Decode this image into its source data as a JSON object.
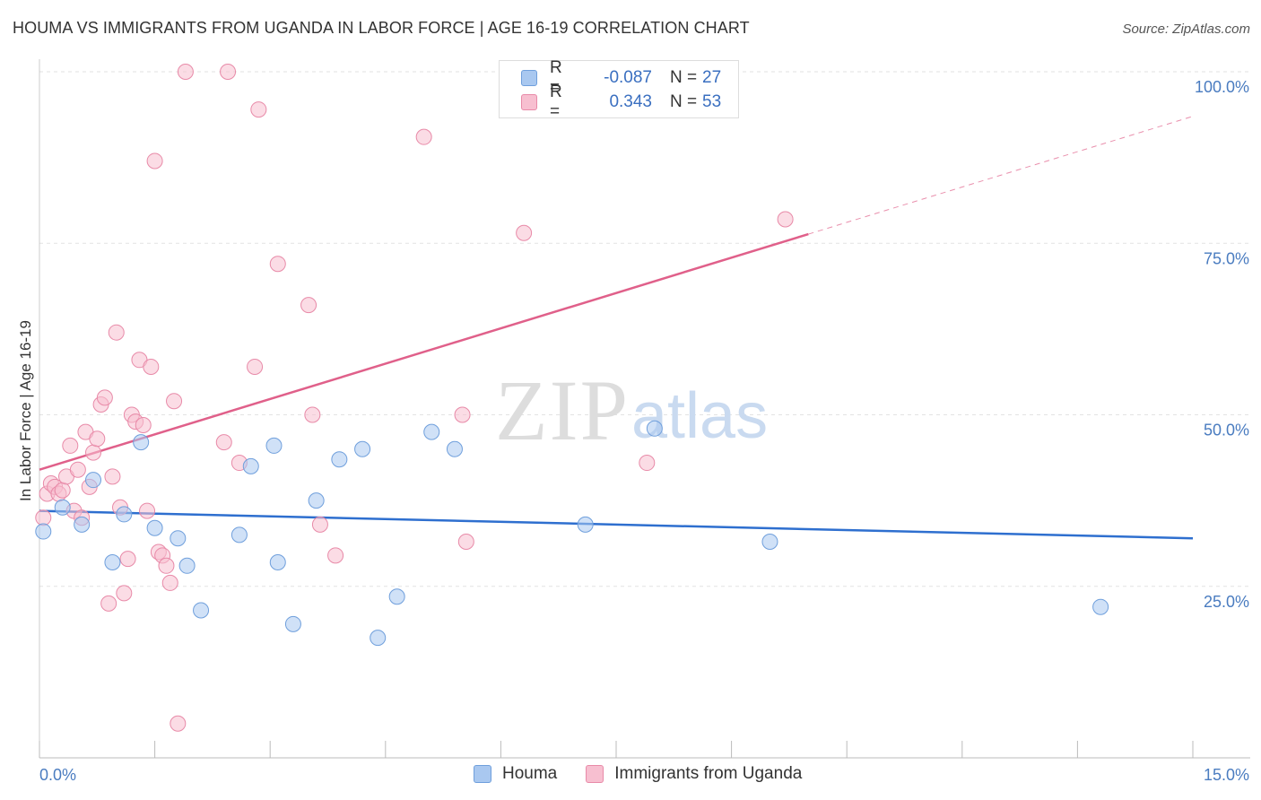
{
  "title": "HOUMA VS IMMIGRANTS FROM UGANDA IN LABOR FORCE | AGE 16-19 CORRELATION CHART",
  "source": "Source: ZipAtlas.com",
  "watermark": {
    "zip": "ZIP",
    "atlas": "atlas"
  },
  "legend": {
    "rows": [
      {
        "r_label": "R =",
        "r_value": "-0.087",
        "n_label": "N =",
        "n_value": "27",
        "color": "#a9c8f0",
        "border": "#6f9fdc"
      },
      {
        "r_label": "R =",
        "r_value": "0.343",
        "n_label": "N =",
        "n_value": "53",
        "color": "#f7bfd0",
        "border": "#e88aa8"
      }
    ]
  },
  "bottom_legend": [
    {
      "label": "Houma",
      "color": "#a9c8f0",
      "border": "#6f9fdc"
    },
    {
      "label": "Immigrants from Uganda",
      "color": "#f7bfd0",
      "border": "#e88aa8"
    }
  ],
  "chart_data": {
    "type": "scatter",
    "title": "HOUMA VS IMMIGRANTS FROM UGANDA IN LABOR FORCE | AGE 16-19 CORRELATION CHART",
    "xlabel": "",
    "ylabel": "In Labor Force | Age 16-19",
    "xlim": [
      0,
      15
    ],
    "ylim": [
      0,
      100
    ],
    "x_tick_labels": [
      "0.0%",
      "15.0%"
    ],
    "y_tick_labels": [
      "25.0%",
      "50.0%",
      "75.0%",
      "100.0%"
    ],
    "y_ticks": [
      25,
      50,
      75,
      100
    ],
    "grid": true,
    "legend_position": "top-center",
    "series": [
      {
        "name": "Houma",
        "color": "#6f9fdc",
        "fill": "#a9c8f0",
        "trend_color": "#2e6fcf",
        "trend": {
          "x0": 0,
          "y0": 36.0,
          "x1": 15,
          "y1": 32.0,
          "solid_to": 15
        },
        "points": [
          [
            0.05,
            33.0
          ],
          [
            0.3,
            36.5
          ],
          [
            0.55,
            34.0
          ],
          [
            0.7,
            40.5
          ],
          [
            0.95,
            28.5
          ],
          [
            1.1,
            35.5
          ],
          [
            1.32,
            46.0
          ],
          [
            1.5,
            33.5
          ],
          [
            1.8,
            32.0
          ],
          [
            1.92,
            28.0
          ],
          [
            2.1,
            21.5
          ],
          [
            2.6,
            32.5
          ],
          [
            2.75,
            42.5
          ],
          [
            3.05,
            45.5
          ],
          [
            3.1,
            28.5
          ],
          [
            3.3,
            19.5
          ],
          [
            3.6,
            37.5
          ],
          [
            3.9,
            43.5
          ],
          [
            4.2,
            45.0
          ],
          [
            4.4,
            17.5
          ],
          [
            4.65,
            23.5
          ],
          [
            5.1,
            47.5
          ],
          [
            5.4,
            45.0
          ],
          [
            7.1,
            34.0
          ],
          [
            8.0,
            48.0
          ],
          [
            9.5,
            31.5
          ],
          [
            13.8,
            22.0
          ]
        ]
      },
      {
        "name": "Immigrants from Uganda",
        "color": "#e88aa8",
        "fill": "#f7bfd0",
        "trend_color": "#e0608a",
        "trend": {
          "x0": 0,
          "y0": 42.0,
          "x1": 15,
          "y1": 93.5,
          "solid_to": 10.0
        },
        "points": [
          [
            0.05,
            35.0
          ],
          [
            0.1,
            38.5
          ],
          [
            0.15,
            40.0
          ],
          [
            0.2,
            39.5
          ],
          [
            0.25,
            38.5
          ],
          [
            0.3,
            39.0
          ],
          [
            0.35,
            41.0
          ],
          [
            0.4,
            45.5
          ],
          [
            0.45,
            36.0
          ],
          [
            0.5,
            42.0
          ],
          [
            0.55,
            35.0
          ],
          [
            0.6,
            47.5
          ],
          [
            0.65,
            39.5
          ],
          [
            0.7,
            44.5
          ],
          [
            0.75,
            46.5
          ],
          [
            0.8,
            51.5
          ],
          [
            0.85,
            52.5
          ],
          [
            0.9,
            22.5
          ],
          [
            0.95,
            41.0
          ],
          [
            1.0,
            62.0
          ],
          [
            1.05,
            36.5
          ],
          [
            1.1,
            24.0
          ],
          [
            1.15,
            29.0
          ],
          [
            1.2,
            50.0
          ],
          [
            1.25,
            49.0
          ],
          [
            1.3,
            58.0
          ],
          [
            1.35,
            48.5
          ],
          [
            1.4,
            36.0
          ],
          [
            1.45,
            57.0
          ],
          [
            1.5,
            87.0
          ],
          [
            1.55,
            30.0
          ],
          [
            1.6,
            29.5
          ],
          [
            1.65,
            28.0
          ],
          [
            1.7,
            25.5
          ],
          [
            1.75,
            52.0
          ],
          [
            1.8,
            5.0
          ],
          [
            1.9,
            100.0
          ],
          [
            2.4,
            46.0
          ],
          [
            2.6,
            43.0
          ],
          [
            2.45,
            100.0
          ],
          [
            2.8,
            57.0
          ],
          [
            2.85,
            94.5
          ],
          [
            3.1,
            72.0
          ],
          [
            3.5,
            66.0
          ],
          [
            3.55,
            50.0
          ],
          [
            3.65,
            34.0
          ],
          [
            3.85,
            29.5
          ],
          [
            5.0,
            90.5
          ],
          [
            5.5,
            50.0
          ],
          [
            5.55,
            31.5
          ],
          [
            6.3,
            76.5
          ],
          [
            7.9,
            43.0
          ],
          [
            9.7,
            78.5
          ]
        ]
      }
    ]
  }
}
